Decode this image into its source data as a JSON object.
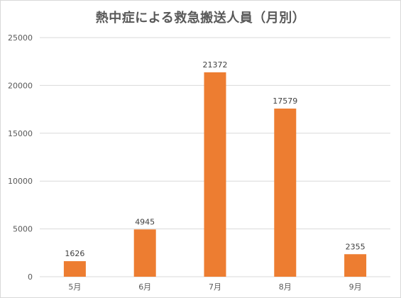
{
  "chart_data": {
    "type": "bar",
    "title": "熱中症による救急搬送人員（月別）",
    "xlabel": "",
    "ylabel": "",
    "categories": [
      "5月",
      "6月",
      "7月",
      "8月",
      "9月"
    ],
    "series": [
      {
        "values": [
          1626,
          4945,
          21372,
          17579,
          2355
        ]
      }
    ],
    "data_labels": [
      "1626",
      "4945",
      "21372",
      "17579",
      "2355"
    ],
    "ylim": [
      0,
      25000
    ],
    "yticks": [
      0,
      5000,
      10000,
      15000,
      20000,
      25000
    ],
    "ytick_labels": [
      "0",
      "5000",
      "10000",
      "15000",
      "20000",
      "25000"
    ],
    "grid": true,
    "legend": "none",
    "bar_color": "#ED7D31",
    "grid_color": "#D9D9D9"
  }
}
